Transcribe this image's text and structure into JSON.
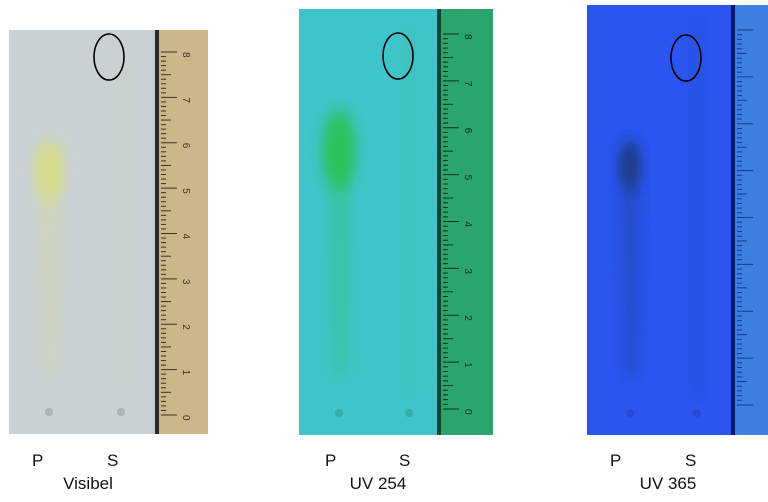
{
  "panels": [
    {
      "id": "visible",
      "lane_labels": [
        "P",
        "S"
      ],
      "caption": "Visibel",
      "colors": {
        "plate": "#c9d1d4",
        "spot": "#d6de7a",
        "ruler": "#cbb88a",
        "ruler_dark": "#2b2a25",
        "marking": "#3a3020"
      },
      "ruler_numbers": [
        "8",
        "7",
        "6",
        "5",
        "4",
        "3",
        "2",
        "1",
        "0"
      ]
    },
    {
      "id": "uv254",
      "lane_labels": [
        "P",
        "S"
      ],
      "caption": "UV 254",
      "colors": {
        "plate": "#3fc4c9",
        "spot": "#27c24a",
        "ruler": "#2aa56b",
        "ruler_dark": "#114433",
        "marking": "#0c2e1f"
      },
      "ruler_numbers": [
        "8",
        "7",
        "6",
        "5",
        "4",
        "3",
        "2",
        "1",
        "0"
      ]
    },
    {
      "id": "uv365",
      "lane_labels": [
        "P",
        "S"
      ],
      "caption": "UV 365",
      "colors": {
        "plate": "#2a55ee",
        "spot": "#1b3b7a",
        "ruler": "#3d7fe0",
        "ruler_dark": "#0a1c6a",
        "marking": "#123a90"
      },
      "ruler_numbers": []
    }
  ]
}
